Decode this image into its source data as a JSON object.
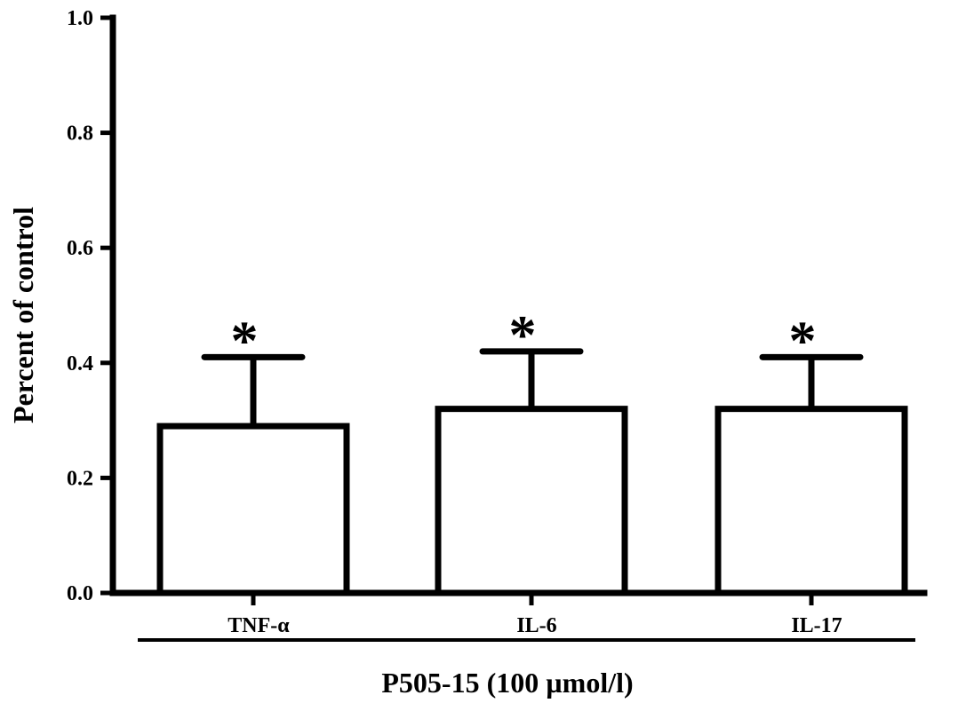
{
  "chart_data": {
    "type": "bar",
    "categories": [
      "TNF-α",
      "IL-6",
      "IL-17"
    ],
    "values": [
      0.29,
      0.32,
      0.32
    ],
    "error_upper": [
      0.41,
      0.42,
      0.41
    ],
    "significance_marks": [
      "*",
      "*",
      "*"
    ],
    "title": "",
    "xlabel": "P505-15 (100 µmol/l)",
    "ylabel": "Percent of control",
    "ylim": [
      0,
      1.0
    ],
    "yticks": [
      0.0,
      0.2,
      0.4,
      0.6,
      0.8,
      1.0
    ],
    "ytick_labels": [
      "0.0",
      "0.2",
      "0.4",
      "0.6",
      "0.8",
      "1.0"
    ],
    "grid": false,
    "colors": {
      "bar_fill": "#ffffff",
      "bar_stroke": "#000000",
      "axis": "#000000"
    }
  }
}
